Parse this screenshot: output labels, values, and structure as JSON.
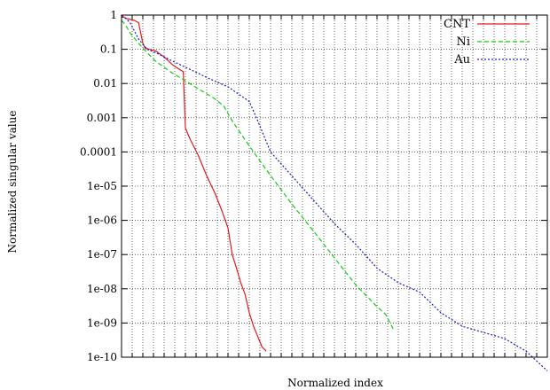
{
  "chart_data": {
    "type": "line",
    "title": "",
    "xlabel": "Normalized index",
    "ylabel": "Normalized singular value",
    "xlim": [
      0,
      1
    ],
    "ylim": [
      1e-10,
      1
    ],
    "yscale": "log",
    "grid": true,
    "x_ticks_labeled": false,
    "y_tick_labels": [
      "1e-10",
      "1e-09",
      "1e-08",
      "1e-07",
      "1e-06",
      "1e-05",
      "0.0001",
      "0.001",
      "0.01",
      "0.1",
      "1"
    ],
    "legend": {
      "position": "top-right"
    },
    "series": [
      {
        "name": "CNT",
        "color": "#e41a1c",
        "dash": "solid",
        "x": [
          0,
          0.004,
          0.01,
          0.02,
          0.03,
          0.04,
          0.045,
          0.05,
          0.055,
          0.065,
          0.08,
          0.1,
          0.12,
          0.145,
          0.148,
          0.15,
          0.16,
          0.18,
          0.2,
          0.22,
          0.235,
          0.25,
          0.26,
          0.27,
          0.28,
          0.29,
          0.3,
          0.31,
          0.32,
          0.33,
          0.34
        ],
        "y": [
          1,
          0.9,
          0.8,
          0.75,
          0.7,
          0.6,
          0.3,
          0.15,
          0.11,
          0.1,
          0.09,
          0.06,
          0.035,
          0.022,
          0.0025,
          0.0005,
          0.00025,
          8e-05,
          2e-05,
          6e-06,
          2e-06,
          6e-07,
          1e-07,
          4e-08,
          1.5e-08,
          7e-09,
          2e-09,
          8e-10,
          4e-10,
          2e-10,
          1.5e-10
        ]
      },
      {
        "name": "Ni",
        "color": "#11cc11",
        "dash": "5,3",
        "x": [
          0,
          0.01,
          0.02,
          0.04,
          0.06,
          0.08,
          0.1,
          0.12,
          0.15,
          0.18,
          0.2,
          0.22,
          0.24,
          0.26,
          0.3,
          0.34,
          0.4,
          0.45,
          0.5,
          0.55,
          0.6,
          0.62,
          0.64
        ],
        "y": [
          0.7,
          0.5,
          0.3,
          0.15,
          0.08,
          0.045,
          0.03,
          0.02,
          0.012,
          0.007,
          0.005,
          0.0035,
          0.0022,
          0.0008,
          0.00015,
          3e-05,
          3e-06,
          5e-07,
          8e-08,
          1.3e-08,
          3e-09,
          1.8e-09,
          6e-10
        ]
      },
      {
        "name": "Au",
        "color": "#1a1acc",
        "dash": "2,2",
        "x": [
          0,
          0.01,
          0.02,
          0.04,
          0.06,
          0.08,
          0.1,
          0.12,
          0.15,
          0.18,
          0.2,
          0.25,
          0.3,
          0.32,
          0.35,
          0.4,
          0.45,
          0.5,
          0.55,
          0.6,
          0.65,
          0.7,
          0.75,
          0.8,
          0.9,
          0.95,
          1
        ],
        "y": [
          0.9,
          0.8,
          0.6,
          0.2,
          0.1,
          0.08,
          0.06,
          0.045,
          0.03,
          0.02,
          0.015,
          0.008,
          0.003,
          0.0008,
          0.0001,
          2e-05,
          4e-06,
          8e-07,
          2e-07,
          4e-08,
          1.5e-08,
          8e-09,
          2e-09,
          8e-10,
          3.5e-10,
          1.5e-10,
          4e-11
        ]
      }
    ]
  }
}
